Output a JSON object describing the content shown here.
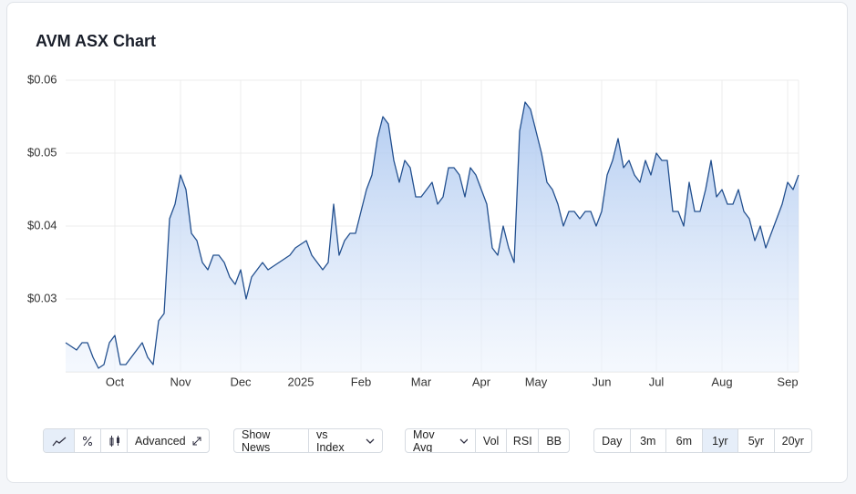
{
  "chart_data": {
    "type": "line",
    "title": "AVM ASX Chart",
    "categories": [
      null,
      null,
      null,
      null,
      null,
      null,
      null,
      null,
      null,
      "Oct",
      null,
      null,
      null,
      null,
      null,
      null,
      null,
      null,
      null,
      null,
      null,
      "Nov",
      null,
      null,
      null,
      null,
      null,
      null,
      null,
      null,
      null,
      null,
      "Dec",
      null,
      null,
      null,
      null,
      null,
      null,
      null,
      null,
      null,
      null,
      "2025",
      null,
      null,
      null,
      null,
      null,
      null,
      null,
      null,
      null,
      null,
      "Feb",
      null,
      null,
      null,
      null,
      null,
      null,
      null,
      null,
      null,
      null,
      "Mar",
      null,
      null,
      null,
      null,
      null,
      null,
      null,
      null,
      null,
      null,
      "Apr",
      null,
      null,
      null,
      null,
      null,
      null,
      null,
      null,
      null,
      "May",
      null,
      null,
      null,
      null,
      null,
      null,
      null,
      null,
      null,
      null,
      null,
      "Jun",
      null,
      null,
      null,
      null,
      null,
      null,
      null,
      null,
      null,
      "Jul",
      null,
      null,
      null,
      null,
      null,
      null,
      null,
      null,
      null,
      null,
      null,
      "Aug",
      null,
      null,
      null,
      null,
      null,
      null,
      null,
      null,
      null,
      null,
      null,
      "Sep",
      null,
      null
    ],
    "series": [
      {
        "color": "#23508f",
        "values": [
          0.024,
          0.0235,
          0.023,
          0.024,
          0.024,
          0.022,
          0.0205,
          0.021,
          0.024,
          0.025,
          0.021,
          0.021,
          0.022,
          0.023,
          0.024,
          0.022,
          0.021,
          0.027,
          0.028,
          0.041,
          0.043,
          0.047,
          0.045,
          0.039,
          0.038,
          0.035,
          0.034,
          0.036,
          0.036,
          0.035,
          0.033,
          0.032,
          0.034,
          0.03,
          0.033,
          0.034,
          0.035,
          0.034,
          0.0345,
          0.035,
          0.0355,
          0.036,
          0.037,
          0.0375,
          0.038,
          0.036,
          0.035,
          0.034,
          0.035,
          0.043,
          0.036,
          0.038,
          0.039,
          0.039,
          0.042,
          0.045,
          0.047,
          0.052,
          0.055,
          0.054,
          0.049,
          0.046,
          0.049,
          0.048,
          0.044,
          0.044,
          0.045,
          0.046,
          0.043,
          0.044,
          0.048,
          0.048,
          0.047,
          0.044,
          0.048,
          0.047,
          0.045,
          0.043,
          0.037,
          0.036,
          0.04,
          0.037,
          0.035,
          0.053,
          0.057,
          0.056,
          0.053,
          0.05,
          0.046,
          0.045,
          0.043,
          0.04,
          0.042,
          0.042,
          0.041,
          0.042,
          0.042,
          0.04,
          0.042,
          0.047,
          0.049,
          0.052,
          0.048,
          0.049,
          0.047,
          0.046,
          0.049,
          0.047,
          0.05,
          0.049,
          0.049,
          0.042,
          0.042,
          0.04,
          0.046,
          0.042,
          0.042,
          0.045,
          0.049,
          0.044,
          0.045,
          0.043,
          0.043,
          0.045,
          0.042,
          0.041,
          0.038,
          0.04,
          0.037,
          0.039,
          0.041,
          0.043,
          0.046,
          0.045,
          0.047
        ]
      }
    ],
    "ylim": [
      0.02,
      0.06
    ],
    "yticks": [
      {
        "value": 0.03,
        "label": "$0.03"
      },
      {
        "value": 0.04,
        "label": "$0.04"
      },
      {
        "value": 0.05,
        "label": "$0.05"
      },
      {
        "value": 0.06,
        "label": "$0.06"
      }
    ],
    "grid": true,
    "area": true
  },
  "controls": {
    "chart_style": [
      "Advanced"
    ],
    "overlays": [
      "Show News",
      "vs Index"
    ],
    "indicators": [
      "Mov Avg",
      "Vol",
      "RSI",
      "BB"
    ],
    "ranges": [
      "Day",
      "3m",
      "6m",
      "1yr",
      "5yr",
      "20yr"
    ],
    "selected_range": "1yr"
  }
}
